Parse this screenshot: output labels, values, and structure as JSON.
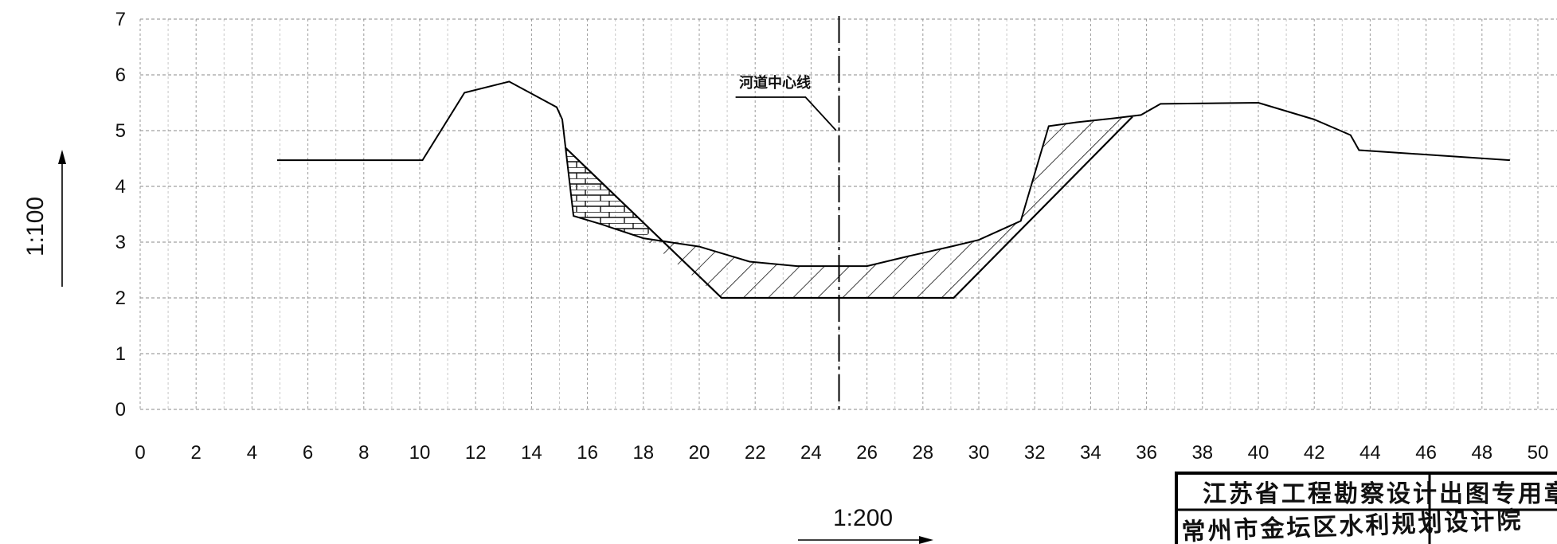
{
  "chart_data": {
    "type": "line",
    "title": "",
    "xlabel": "",
    "ylabel": "",
    "xlim": [
      0,
      50
    ],
    "ylim": [
      0,
      7
    ],
    "x_ticks": [
      0,
      2,
      4,
      6,
      8,
      10,
      12,
      14,
      16,
      18,
      20,
      22,
      24,
      26,
      28,
      30,
      32,
      34,
      36,
      38,
      40,
      42,
      44,
      46,
      48,
      50
    ],
    "y_ticks": [
      0,
      1,
      2,
      3,
      4,
      5,
      6,
      7
    ],
    "grid": true,
    "series": [
      {
        "role": "existing ground profile",
        "x": [
          4.9,
          10.1,
          11.6,
          13.2,
          14.9,
          15.1,
          15.5,
          16.5,
          18.0,
          20.0,
          21.8,
          23.5,
          26.0,
          27.5,
          29.0,
          30.0,
          31.5,
          32.5,
          33.5,
          34.8,
          35.8,
          36.5,
          40.0,
          42.0,
          43.3,
          43.6,
          49.0
        ],
        "y": [
          4.47,
          4.47,
          5.68,
          5.88,
          5.42,
          5.2,
          3.47,
          3.32,
          3.07,
          2.92,
          2.65,
          2.57,
          2.57,
          2.75,
          2.92,
          3.04,
          3.38,
          5.08,
          5.15,
          5.22,
          5.28,
          5.48,
          5.5,
          5.2,
          4.92,
          4.65,
          4.47
        ]
      },
      {
        "role": "design channel section",
        "x": [
          15.2,
          20.8,
          29.1,
          35.5
        ],
        "y": [
          4.7,
          2.0,
          2.0,
          5.25
        ]
      }
    ],
    "centerline_x": 25,
    "centerline_leader": {
      "x": [
        21.3,
        23.8,
        24.9
      ],
      "y": [
        5.6,
        5.6,
        5.0
      ]
    }
  },
  "labels": {
    "centerline": "河道中心线",
    "vertical_scale": "1:100",
    "horizontal_scale": "1:200"
  },
  "stamp": {
    "line1": "江苏省工程勘察设计出图专用章",
    "line2": "常州市金坛区水利规划设计院"
  }
}
